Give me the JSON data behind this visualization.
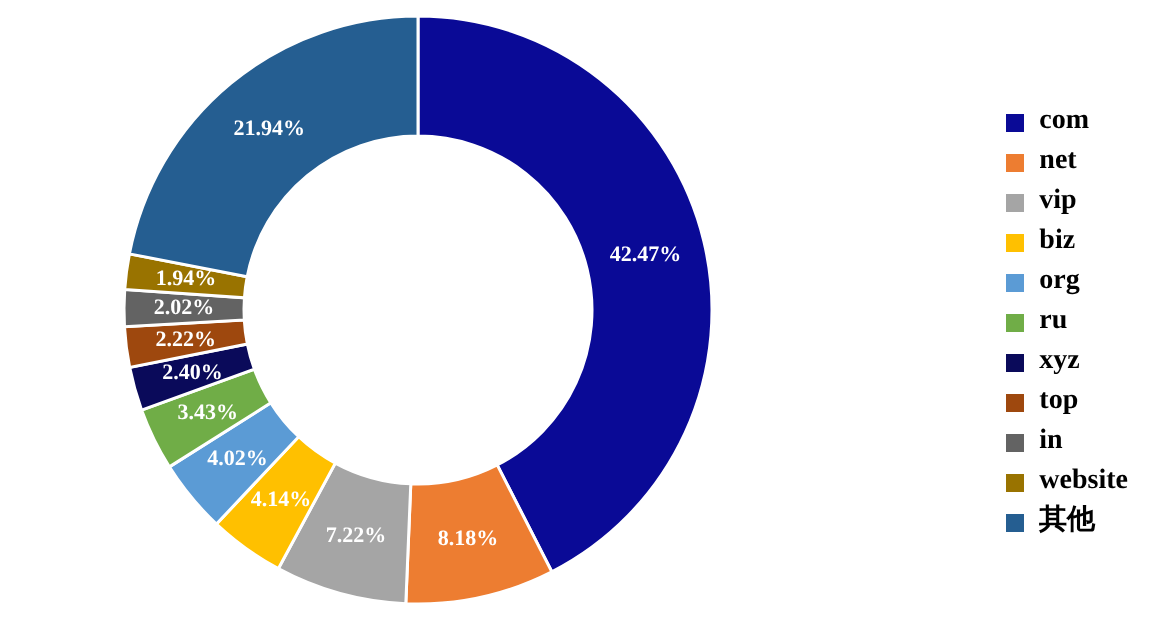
{
  "chart_data": {
    "type": "donut",
    "categories": [
      "com",
      "net",
      "vip",
      "biz",
      "org",
      "ru",
      "xyz",
      "top",
      "in",
      "website",
      "其他"
    ],
    "values": [
      42.47,
      8.18,
      7.22,
      4.14,
      4.02,
      3.43,
      2.4,
      2.22,
      2.02,
      1.94,
      21.94
    ],
    "value_labels": [
      "42.47%",
      "8.18%",
      "7.22%",
      "4.14%",
      "4.02%",
      "3.43%",
      "2.40%",
      "2.22%",
      "2.02%",
      "1.94%",
      "21.94%"
    ],
    "colors": [
      "#0a0a96",
      "#ed7d31",
      "#a5a5a5",
      "#ffc000",
      "#5b9bd5",
      "#70ad47",
      "#0a0a5a",
      "#9e480e",
      "#636363",
      "#997300",
      "#255e91"
    ],
    "legend": "right"
  }
}
